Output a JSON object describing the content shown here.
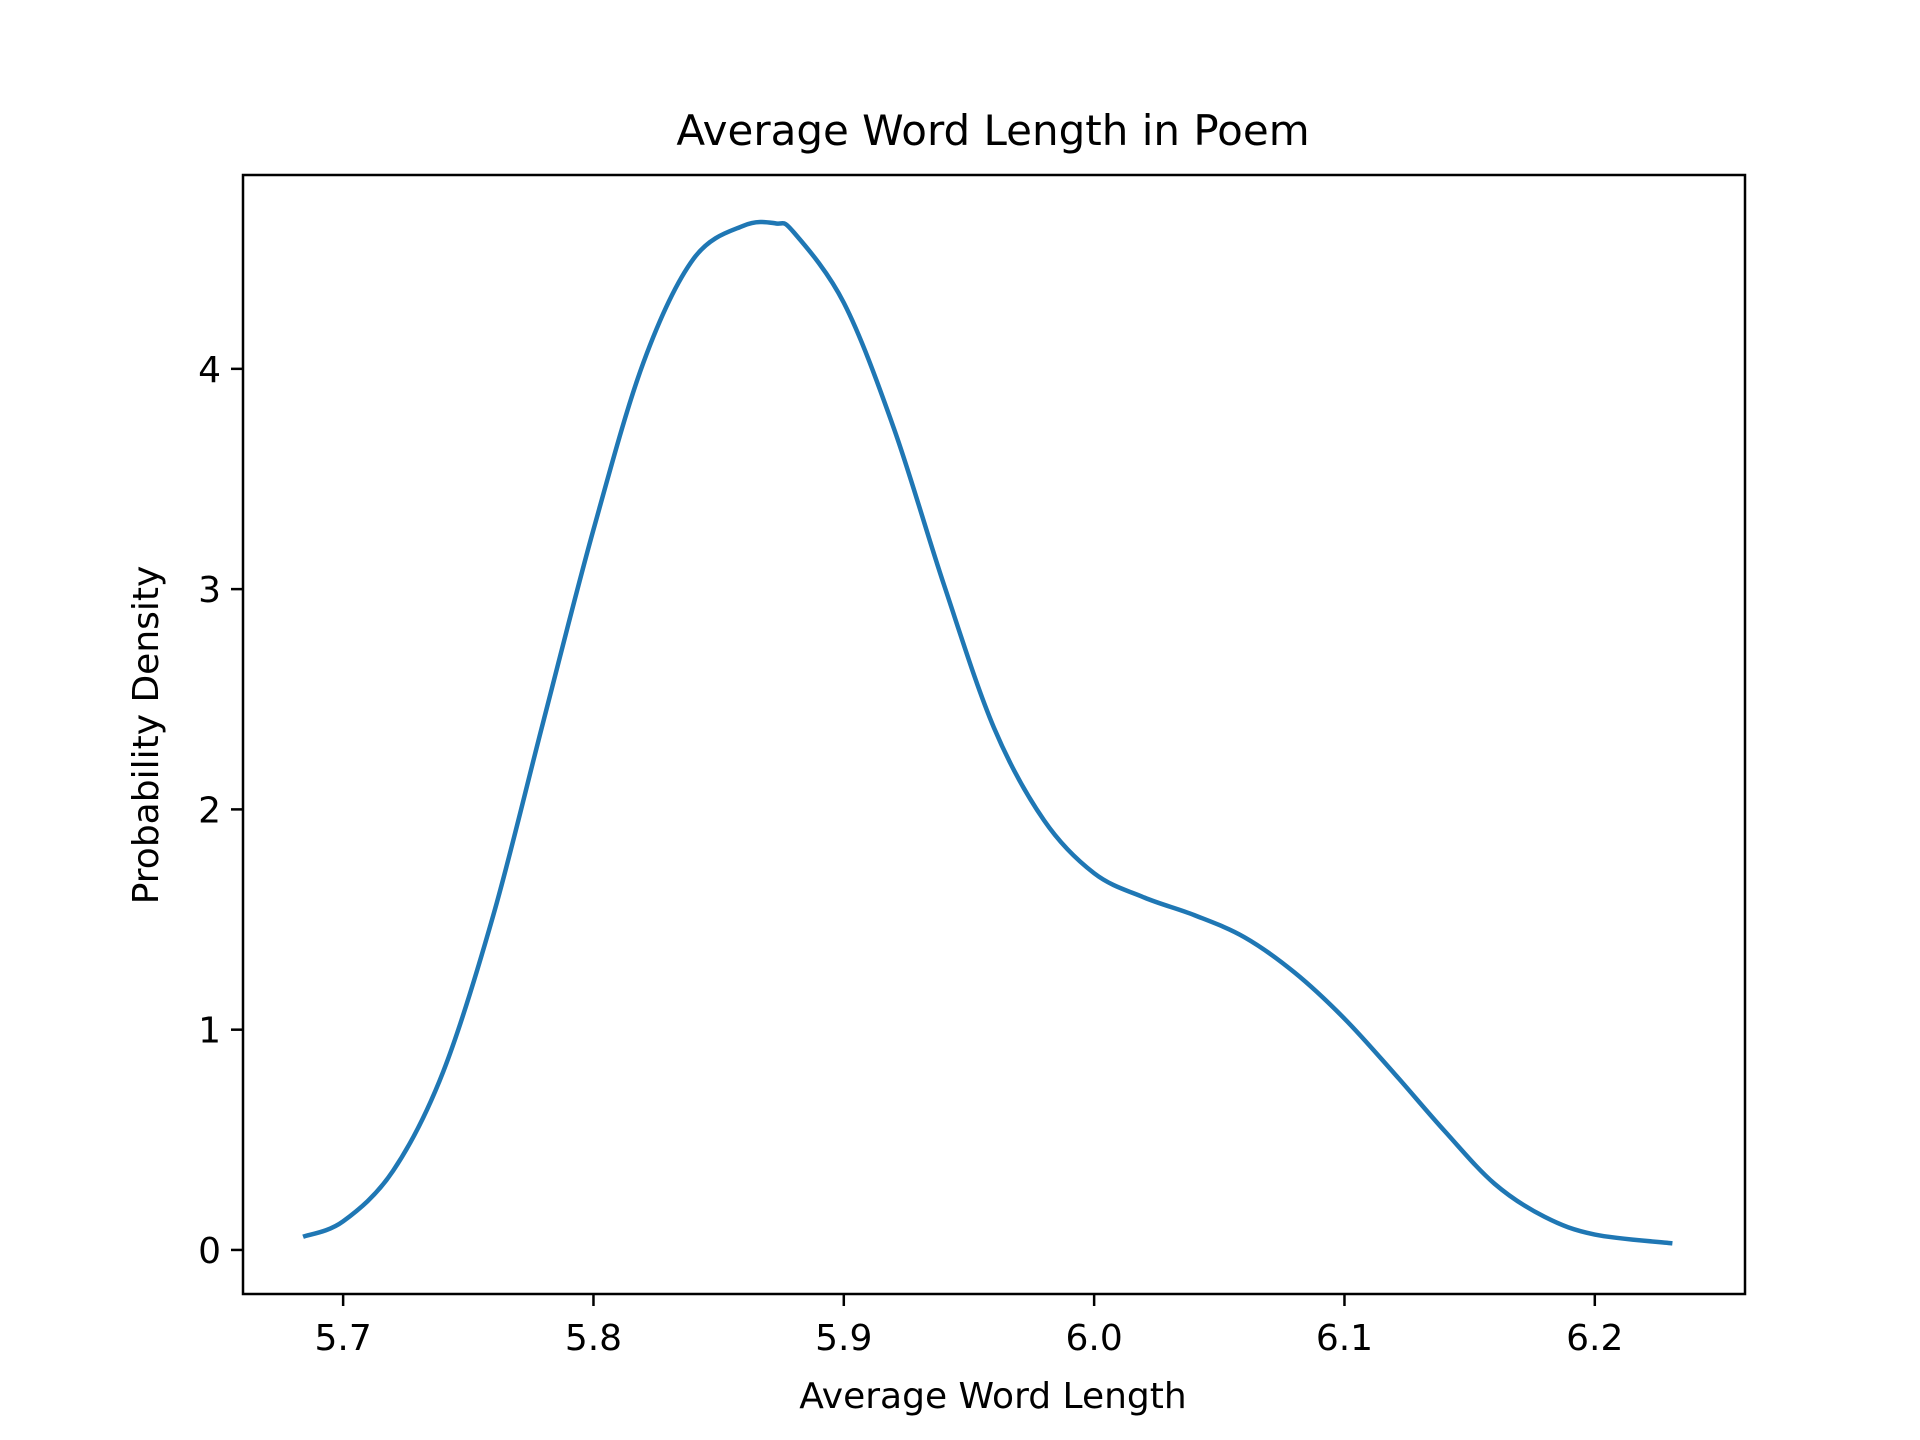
{
  "chart_data": {
    "type": "line",
    "title": "Average Word Length in Poem",
    "xlabel": "Average Word Length",
    "ylabel": "Probability Density",
    "xlim": [
      5.66,
      6.26
    ],
    "ylim": [
      -0.2,
      4.88
    ],
    "xticks": [
      5.7,
      5.8,
      5.9,
      6.0,
      6.1,
      6.2
    ],
    "xtick_labels": [
      "5.7",
      "5.8",
      "5.9",
      "6.0",
      "6.1",
      "6.2"
    ],
    "yticks": [
      0,
      1,
      2,
      3,
      4
    ],
    "ytick_labels": [
      "0",
      "1",
      "2",
      "3",
      "4"
    ],
    "grid": false,
    "legend": "none",
    "series": [
      {
        "color": "#1f77b4",
        "x": [
          5.684,
          5.7,
          5.72,
          5.74,
          5.76,
          5.78,
          5.8,
          5.82,
          5.84,
          5.86,
          5.873,
          5.88,
          5.9,
          5.92,
          5.94,
          5.96,
          5.98,
          6.0,
          6.02,
          6.04,
          6.06,
          6.08,
          6.1,
          6.12,
          6.14,
          6.16,
          6.18,
          6.2,
          6.231
        ],
        "y": [
          0.06,
          0.13,
          0.36,
          0.81,
          1.52,
          2.4,
          3.27,
          4.03,
          4.5,
          4.65,
          4.66,
          4.62,
          4.3,
          3.73,
          3.02,
          2.37,
          1.95,
          1.71,
          1.6,
          1.52,
          1.42,
          1.26,
          1.05,
          0.8,
          0.54,
          0.3,
          0.15,
          0.07,
          0.03
        ]
      }
    ]
  }
}
